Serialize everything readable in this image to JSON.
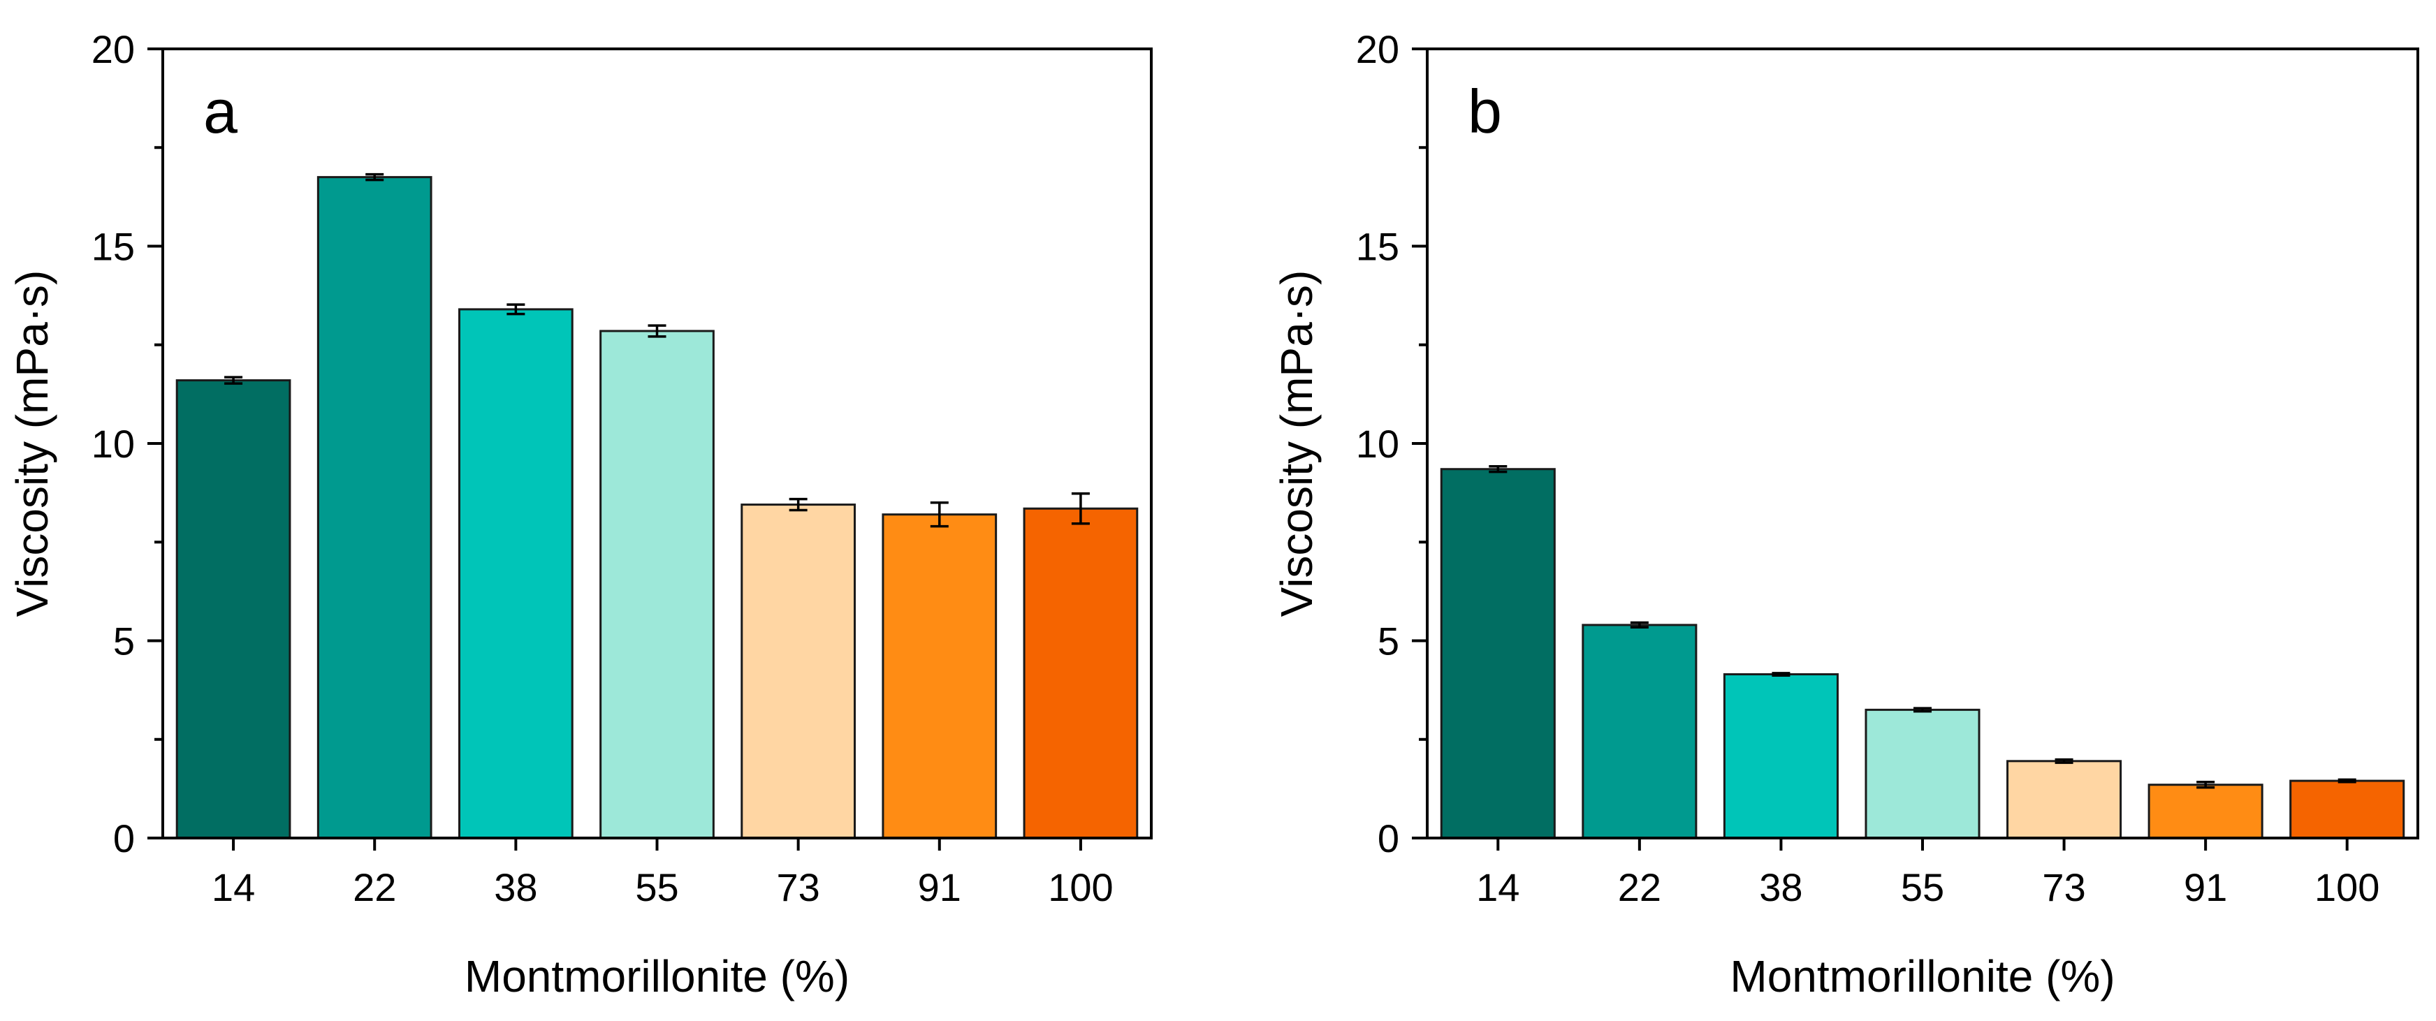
{
  "chart_data": [
    {
      "type": "bar",
      "panel_label": "a",
      "categories": [
        "14",
        "22",
        "38",
        "55",
        "73",
        "91",
        "100"
      ],
      "values": [
        11.6,
        16.75,
        13.4,
        12.85,
        8.45,
        8.2,
        8.35
      ],
      "errors": [
        0.08,
        0.07,
        0.12,
        0.14,
        0.14,
        0.3,
        0.38
      ],
      "colors": [
        "#016E62",
        "#009A8F",
        "#00C5B8",
        "#9DE8D9",
        "#FFD6A3",
        "#FF8C14",
        "#F56400"
      ],
      "xlabel": "Montmorillonite (%)",
      "ylabel": "Viscosity (mPa·s)",
      "ylim": [
        0,
        20
      ],
      "yticks": [
        0,
        5,
        10,
        15,
        20
      ],
      "grid": false,
      "legend": "none"
    },
    {
      "type": "bar",
      "panel_label": "b",
      "categories": [
        "14",
        "22",
        "38",
        "55",
        "73",
        "91",
        "100"
      ],
      "values": [
        9.35,
        5.4,
        4.15,
        3.25,
        1.95,
        1.35,
        1.45
      ],
      "errors": [
        0.07,
        0.06,
        0.03,
        0.04,
        0.04,
        0.07,
        0.03
      ],
      "colors": [
        "#016E62",
        "#009A8F",
        "#00C5B8",
        "#9DE8D9",
        "#FFD6A3",
        "#FF8C14",
        "#F56400"
      ],
      "xlabel": "Montmorillonite (%)",
      "ylabel": "Viscosity (mPa·s)",
      "ylim": [
        0,
        20
      ],
      "yticks": [
        0,
        5,
        10,
        15,
        20
      ],
      "grid": false,
      "legend": "none"
    }
  ]
}
